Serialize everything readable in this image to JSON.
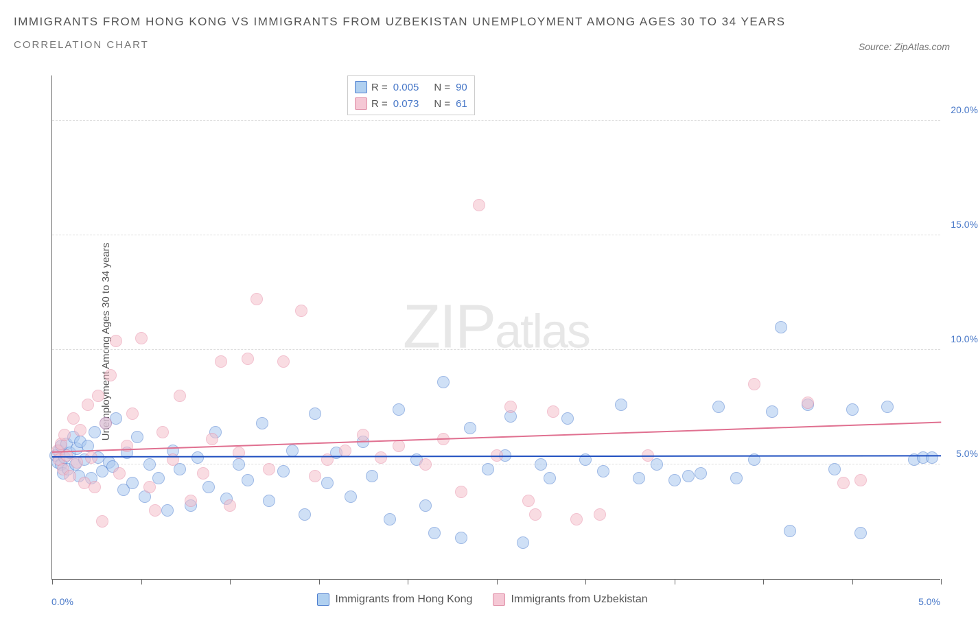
{
  "header": {
    "title": "IMMIGRANTS FROM HONG KONG VS IMMIGRANTS FROM UZBEKISTAN UNEMPLOYMENT AMONG AGES 30 TO 34 YEARS",
    "subtitle": "CORRELATION CHART",
    "source": "Source: ZipAtlas.com"
  },
  "chart": {
    "type": "scatter",
    "ylabel": "Unemployment Among Ages 30 to 34 years",
    "xlim": [
      0,
      5
    ],
    "ylim": [
      0,
      22
    ],
    "x_origin_label": "0.0%",
    "x_max_label": "5.0%",
    "ytick_labels": [
      "5.0%",
      "10.0%",
      "15.0%",
      "20.0%"
    ],
    "ytick_values": [
      5,
      10,
      15,
      20
    ],
    "x_ticks": [
      0,
      0.5,
      1.0,
      1.5,
      2.0,
      2.5,
      3.0,
      3.5,
      4.0,
      4.5,
      5.0
    ],
    "grid_color": "#dddddd",
    "axis_color": "#666666",
    "background_color": "#ffffff",
    "marker_size": 18,
    "marker_opacity": 0.55,
    "series": [
      {
        "id": "hk",
        "name": "Immigrants from Hong Kong",
        "fill_color": "#a8c8f0",
        "stroke_color": "#5080d0",
        "trend_color": "#2050c0",
        "trend": {
          "y_at_x0": 5.3,
          "y_at_xmax": 5.35
        },
        "R": "0.005",
        "N": "90",
        "points": [
          [
            0.02,
            5.4
          ],
          [
            0.03,
            5.1
          ],
          [
            0.04,
            5.6
          ],
          [
            0.05,
            5.0
          ],
          [
            0.05,
            5.8
          ],
          [
            0.06,
            4.6
          ],
          [
            0.07,
            5.3
          ],
          [
            0.08,
            5.9
          ],
          [
            0.09,
            4.8
          ],
          [
            0.1,
            5.5
          ],
          [
            0.12,
            6.2
          ],
          [
            0.13,
            5.0
          ],
          [
            0.14,
            5.7
          ],
          [
            0.15,
            4.5
          ],
          [
            0.16,
            6.0
          ],
          [
            0.18,
            5.2
          ],
          [
            0.2,
            5.8
          ],
          [
            0.22,
            4.4
          ],
          [
            0.24,
            6.4
          ],
          [
            0.26,
            5.3
          ],
          [
            0.28,
            4.7
          ],
          [
            0.3,
            6.8
          ],
          [
            0.32,
            5.1
          ],
          [
            0.34,
            4.9
          ],
          [
            0.36,
            7.0
          ],
          [
            0.4,
            3.9
          ],
          [
            0.42,
            5.5
          ],
          [
            0.45,
            4.2
          ],
          [
            0.48,
            6.2
          ],
          [
            0.52,
            3.6
          ],
          [
            0.55,
            5.0
          ],
          [
            0.6,
            4.4
          ],
          [
            0.65,
            3.0
          ],
          [
            0.68,
            5.6
          ],
          [
            0.72,
            4.8
          ],
          [
            0.78,
            3.2
          ],
          [
            0.82,
            5.3
          ],
          [
            0.88,
            4.0
          ],
          [
            0.92,
            6.4
          ],
          [
            0.98,
            3.5
          ],
          [
            1.05,
            5.0
          ],
          [
            1.1,
            4.3
          ],
          [
            1.18,
            6.8
          ],
          [
            1.22,
            3.4
          ],
          [
            1.3,
            4.7
          ],
          [
            1.35,
            5.6
          ],
          [
            1.42,
            2.8
          ],
          [
            1.48,
            7.2
          ],
          [
            1.55,
            4.2
          ],
          [
            1.6,
            5.5
          ],
          [
            1.68,
            3.6
          ],
          [
            1.75,
            6.0
          ],
          [
            1.8,
            4.5
          ],
          [
            1.9,
            2.6
          ],
          [
            1.95,
            7.4
          ],
          [
            2.05,
            5.2
          ],
          [
            2.1,
            3.2
          ],
          [
            2.15,
            2.0
          ],
          [
            2.2,
            8.6
          ],
          [
            2.3,
            1.8
          ],
          [
            2.35,
            6.6
          ],
          [
            2.45,
            4.8
          ],
          [
            2.55,
            5.4
          ],
          [
            2.58,
            7.1
          ],
          [
            2.65,
            1.6
          ],
          [
            2.75,
            5.0
          ],
          [
            2.8,
            4.4
          ],
          [
            2.9,
            7.0
          ],
          [
            3.0,
            5.2
          ],
          [
            3.1,
            4.7
          ],
          [
            3.2,
            7.6
          ],
          [
            3.3,
            4.4
          ],
          [
            3.4,
            5.0
          ],
          [
            3.5,
            4.3
          ],
          [
            3.58,
            4.5
          ],
          [
            3.65,
            4.6
          ],
          [
            3.75,
            7.5
          ],
          [
            3.85,
            4.4
          ],
          [
            3.95,
            5.2
          ],
          [
            4.05,
            7.3
          ],
          [
            4.1,
            11.0
          ],
          [
            4.15,
            2.1
          ],
          [
            4.25,
            7.6
          ],
          [
            4.4,
            4.8
          ],
          [
            4.5,
            7.4
          ],
          [
            4.55,
            2.0
          ],
          [
            4.7,
            7.5
          ],
          [
            4.85,
            5.2
          ],
          [
            4.9,
            5.3
          ],
          [
            4.95,
            5.3
          ]
        ]
      },
      {
        "id": "uz",
        "name": "Immigrants from Uzbekistan",
        "fill_color": "#f5c0cc",
        "stroke_color": "#e890a8",
        "trend_color": "#e07090",
        "trend": {
          "y_at_x0": 5.5,
          "y_at_xmax": 6.8
        },
        "R": "0.073",
        "N": "61",
        "points": [
          [
            0.03,
            5.6
          ],
          [
            0.04,
            5.2
          ],
          [
            0.05,
            5.9
          ],
          [
            0.06,
            4.8
          ],
          [
            0.07,
            6.3
          ],
          [
            0.08,
            5.4
          ],
          [
            0.1,
            4.5
          ],
          [
            0.12,
            7.0
          ],
          [
            0.14,
            5.1
          ],
          [
            0.16,
            6.5
          ],
          [
            0.18,
            4.2
          ],
          [
            0.2,
            7.6
          ],
          [
            0.22,
            5.3
          ],
          [
            0.24,
            4.0
          ],
          [
            0.26,
            8.0
          ],
          [
            0.28,
            2.5
          ],
          [
            0.3,
            6.8
          ],
          [
            0.33,
            8.9
          ],
          [
            0.36,
            10.4
          ],
          [
            0.38,
            4.6
          ],
          [
            0.42,
            5.8
          ],
          [
            0.45,
            7.2
          ],
          [
            0.5,
            10.5
          ],
          [
            0.55,
            4.0
          ],
          [
            0.58,
            3.0
          ],
          [
            0.62,
            6.4
          ],
          [
            0.68,
            5.2
          ],
          [
            0.72,
            8.0
          ],
          [
            0.78,
            3.4
          ],
          [
            0.85,
            4.6
          ],
          [
            0.9,
            6.1
          ],
          [
            0.95,
            9.5
          ],
          [
            1.0,
            3.2
          ],
          [
            1.05,
            5.5
          ],
          [
            1.1,
            9.6
          ],
          [
            1.15,
            12.2
          ],
          [
            1.22,
            4.8
          ],
          [
            1.3,
            9.5
          ],
          [
            1.4,
            11.7
          ],
          [
            1.48,
            4.5
          ],
          [
            1.55,
            5.2
          ],
          [
            1.65,
            5.6
          ],
          [
            1.75,
            6.3
          ],
          [
            1.85,
            5.3
          ],
          [
            1.95,
            5.8
          ],
          [
            2.1,
            5.0
          ],
          [
            2.2,
            6.1
          ],
          [
            2.3,
            3.8
          ],
          [
            2.4,
            16.3
          ],
          [
            2.5,
            5.4
          ],
          [
            2.58,
            7.5
          ],
          [
            2.68,
            3.4
          ],
          [
            2.72,
            2.8
          ],
          [
            2.82,
            7.3
          ],
          [
            2.95,
            2.6
          ],
          [
            3.08,
            2.8
          ],
          [
            3.35,
            5.4
          ],
          [
            3.95,
            8.5
          ],
          [
            4.25,
            7.7
          ],
          [
            4.45,
            4.2
          ],
          [
            4.55,
            4.3
          ]
        ]
      }
    ],
    "legend_top": {
      "border_color": "#cccccc",
      "label_R": "R =",
      "label_N": "N ="
    },
    "watermark": {
      "zip": "ZIP",
      "atlas": "atlas",
      "color": "#d0d0d0"
    }
  }
}
